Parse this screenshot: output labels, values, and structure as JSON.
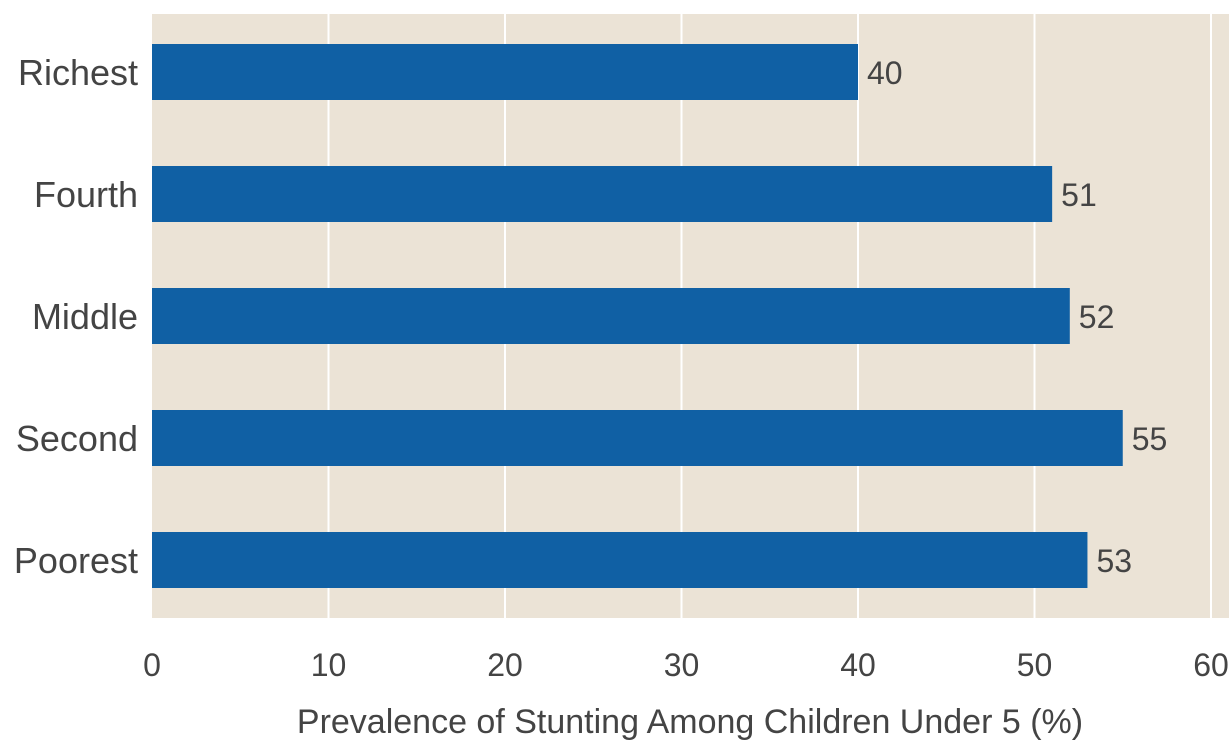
{
  "chart_data": {
    "type": "bar",
    "orientation": "horizontal",
    "categories": [
      "Richest",
      "Fourth",
      "Middle",
      "Second",
      "Poorest"
    ],
    "values": [
      40,
      51,
      52,
      55,
      53
    ],
    "data_labels": [
      "40",
      "51",
      "52",
      "55",
      "53"
    ],
    "title": "",
    "xlabel": "Prevalence of Stunting Among Children Under 5 (%)",
    "ylabel": "",
    "xlim": [
      0,
      60
    ],
    "x_ticks": [
      "0",
      "10",
      "20",
      "30",
      "40",
      "50",
      "60"
    ],
    "grid": "vertical",
    "legend": "none"
  },
  "colors": {
    "bar": "#1060a4",
    "plot_background": "#ebe3d6",
    "grid": "#ffffff",
    "text": "#444444"
  }
}
